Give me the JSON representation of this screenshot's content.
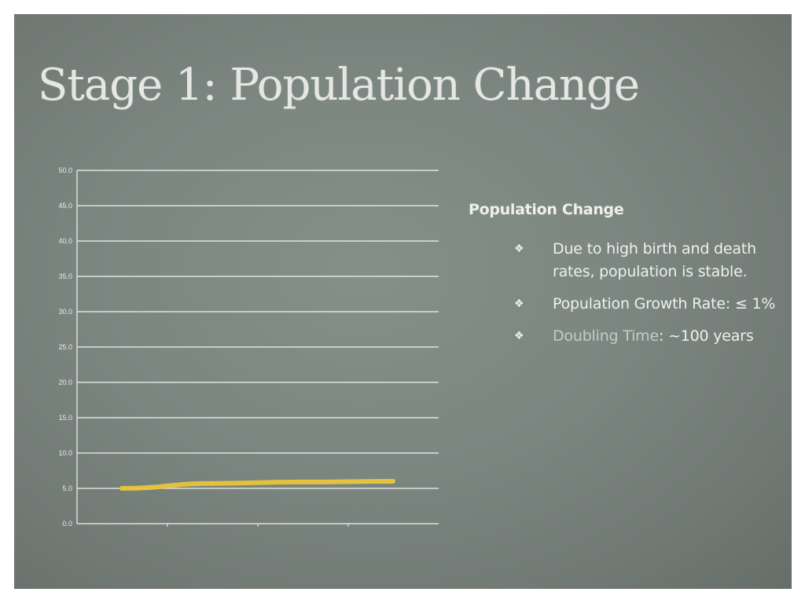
{
  "slide": {
    "title": "Stage 1: Population Change"
  },
  "panel": {
    "heading": "Population Change",
    "bullets": [
      {
        "icon": "diamond-bullet-icon",
        "text": "Due to high birth and death rates, population is stable.",
        "dim": "",
        "rest": ""
      },
      {
        "icon": "diamond-bullet-icon",
        "text": "Population Growth Rate: ≤ 1%",
        "dim": "",
        "rest": ""
      },
      {
        "icon": "diamond-bullet-icon",
        "text": "",
        "dim": "Doubling Time",
        "rest": ": ~100 years"
      }
    ]
  },
  "chart_data": {
    "type": "line",
    "title": "",
    "xlabel": "",
    "ylabel": "",
    "ylim": [
      0,
      50
    ],
    "yticks": [
      "0.0",
      "5.0",
      "10.0",
      "15.0",
      "20.0",
      "25.0",
      "30.0",
      "35.0",
      "40.0",
      "45.0",
      "50.0"
    ],
    "grid": true,
    "x": [
      0,
      1,
      2,
      3
    ],
    "series": [
      {
        "values": [
          5.0,
          5.7,
          5.9,
          6.0
        ],
        "color": "#e8c53a"
      }
    ],
    "colors": {
      "grid": "#f2f4f1",
      "line": "#e8c53a"
    }
  }
}
